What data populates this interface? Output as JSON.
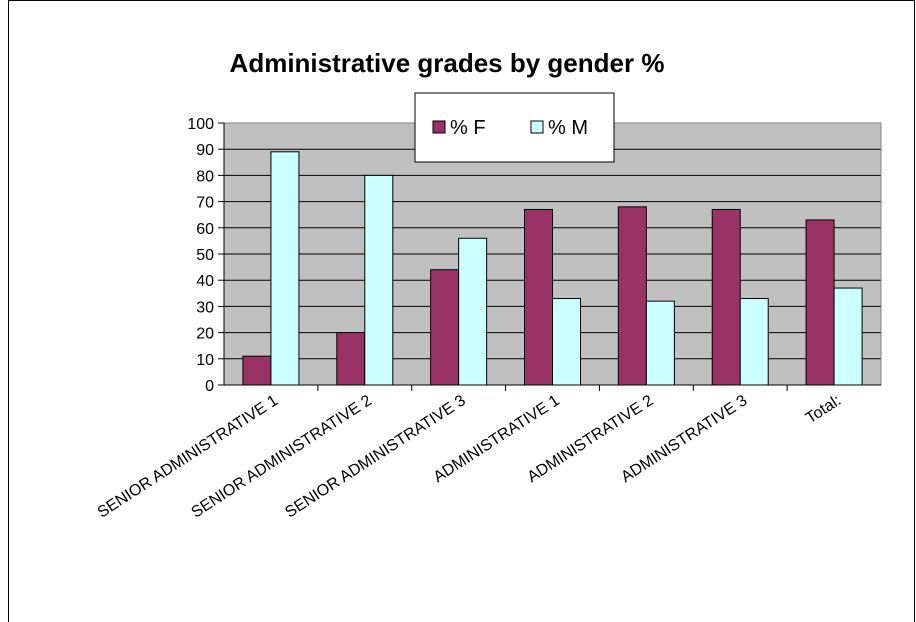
{
  "chart_data": {
    "type": "bar",
    "title": "Administrative grades by gender %",
    "xlabel": "",
    "ylabel": "",
    "categories": [
      "SENIOR ADMINISTRATIVE 1",
      "SENIOR ADMINISTRATIVE 2",
      "SENIOR ADMINISTRATIVE 3",
      "ADMINISTRATIVE 1",
      "ADMINISTRATIVE 2",
      "ADMINISTRATIVE 3",
      "Total:"
    ],
    "series": [
      {
        "name": "% F",
        "color": "#993366",
        "values": [
          11,
          20,
          44,
          67,
          68,
          67,
          63
        ]
      },
      {
        "name": "% M",
        "color": "#CCFFFF",
        "values": [
          89,
          80,
          56,
          33,
          32,
          33,
          37
        ]
      }
    ],
    "ylim": [
      0,
      100
    ],
    "yticks": [
      "0",
      "10",
      "20",
      "30",
      "40",
      "50",
      "60",
      "70",
      "80",
      "90",
      "100"
    ],
    "grid": true,
    "plot_background": "#C0C0C0",
    "legend_position": "top-center"
  }
}
